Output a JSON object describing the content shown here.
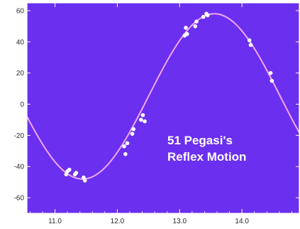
{
  "chart_data": {
    "type": "scatter",
    "title": "",
    "xlabel": "",
    "ylabel": "",
    "xlim": [
      10.55,
      14.92
    ],
    "ylim": [
      -70,
      65
    ],
    "x_ticks": [
      11.0,
      12.0,
      13.0,
      14.0
    ],
    "x_tick_labels": [
      "11.0",
      "12.0",
      "13.0",
      "14.0"
    ],
    "y_ticks": [
      -60,
      -40,
      -20,
      0,
      20,
      40,
      60
    ],
    "y_tick_labels": [
      "-60",
      "-40",
      "-20",
      "0",
      "20",
      "40",
      "60"
    ],
    "grid": false,
    "legend": "none",
    "annotation": [
      "51 Pegasi's",
      "Reflex Motion"
    ],
    "colors": {
      "plot_background": "#6b2ff0",
      "axis_frame": "#ffffff",
      "fit_curve": "#f0a8f0",
      "points": "#ffffff",
      "annotation": "#ffffff",
      "tick_text": "#2a2a2a"
    },
    "fit_curve": {
      "model": "sinusoid",
      "amplitude": 53,
      "offset": 5,
      "period": 4.23,
      "phase_zero_x": 12.5
    },
    "series": [
      {
        "type": "scatter",
        "points": [
          [
            11.18,
            -45
          ],
          [
            11.2,
            -43
          ],
          [
            11.23,
            -42
          ],
          [
            11.32,
            -45
          ],
          [
            11.34,
            -44
          ],
          [
            11.46,
            -47
          ],
          [
            11.48,
            -49
          ],
          [
            12.11,
            -27
          ],
          [
            12.13,
            -32
          ],
          [
            12.16,
            -25
          ],
          [
            12.24,
            -19
          ],
          [
            12.26,
            -16
          ],
          [
            12.38,
            -10
          ],
          [
            12.41,
            -7
          ],
          [
            12.44,
            -11
          ],
          [
            13.08,
            44
          ],
          [
            13.1,
            49
          ],
          [
            13.12,
            45
          ],
          [
            13.25,
            50
          ],
          [
            13.27,
            53
          ],
          [
            13.38,
            56
          ],
          [
            13.43,
            58
          ],
          [
            13.45,
            57
          ],
          [
            14.12,
            41
          ],
          [
            14.14,
            38
          ],
          [
            14.46,
            20
          ],
          [
            14.48,
            15
          ]
        ]
      }
    ]
  }
}
